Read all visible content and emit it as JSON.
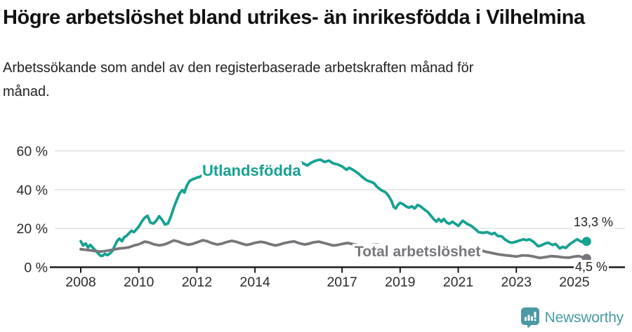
{
  "header": {
    "title": "Högre arbetslöshet bland utrikes- än inrikesfödda i Vilhelmina",
    "subtitle": "Arbetssökande som andel av den registerbaserade arbetskraften månad för månad."
  },
  "footer": {
    "brand": "Newsworthy",
    "logo_icon": "bar-chart-speech-bubble-icon",
    "brand_color": "#4a99a4"
  },
  "colors": {
    "foreign_born_line": "#17a191",
    "total_line": "#77777b",
    "gridline": "#e2e2e2",
    "axis": "#1a1a1a",
    "tick_text": "#2b2b2b"
  },
  "chart_data": {
    "type": "line",
    "title": "Högre arbetslöshet bland utrikes- än inrikesfödda i Vilhelmina",
    "subtitle": "Arbetssökande som andel av den registerbaserade arbetskraften månad för månad.",
    "xlabel": "",
    "ylabel": "",
    "unit": "%",
    "xlim": [
      2007.35,
      2025.8
    ],
    "ylim": [
      0,
      66
    ],
    "grid": "horizontal",
    "legend_position": "inline-labels",
    "x_ticks": [
      2008,
      2010,
      2012,
      2014,
      2017,
      2019,
      2021,
      2023,
      2025
    ],
    "x_tick_labels": [
      "2008",
      "2010",
      "2012",
      "2014",
      "2017",
      "2019",
      "2021",
      "2023",
      "2025"
    ],
    "y_ticks": [
      0,
      20,
      40,
      60
    ],
    "y_tick_labels": [
      "0 %",
      "20 %",
      "40 %",
      "60 %"
    ],
    "series": [
      {
        "name": "Utlandsfödda",
        "color": "#17a191",
        "end_label": "13,3 %",
        "end_value": 13.3,
        "points": [
          [
            2008.0,
            13.4
          ],
          [
            2008.08,
            11.2
          ],
          [
            2008.17,
            12.3
          ],
          [
            2008.25,
            10.2
          ],
          [
            2008.33,
            11.5
          ],
          [
            2008.42,
            10.0
          ],
          [
            2008.5,
            8.7
          ],
          [
            2008.58,
            7.5
          ],
          [
            2008.67,
            6.0
          ],
          [
            2008.75,
            5.8
          ],
          [
            2008.83,
            6.9
          ],
          [
            2008.92,
            6.2
          ],
          [
            2009.0,
            7.0
          ],
          [
            2009.08,
            8.2
          ],
          [
            2009.17,
            11.0
          ],
          [
            2009.25,
            13.4
          ],
          [
            2009.33,
            14.8
          ],
          [
            2009.42,
            13.4
          ],
          [
            2009.5,
            15.5
          ],
          [
            2009.58,
            16.2
          ],
          [
            2009.67,
            17.7
          ],
          [
            2009.75,
            18.8
          ],
          [
            2009.83,
            18.1
          ],
          [
            2009.92,
            19.5
          ],
          [
            2010.0,
            21.0
          ],
          [
            2010.1,
            23.5
          ],
          [
            2010.2,
            25.5
          ],
          [
            2010.3,
            26.5
          ],
          [
            2010.4,
            23.0
          ],
          [
            2010.5,
            22.5
          ],
          [
            2010.6,
            24.0
          ],
          [
            2010.7,
            26.3
          ],
          [
            2010.8,
            24.5
          ],
          [
            2010.9,
            22.0
          ],
          [
            2011.0,
            22.5
          ],
          [
            2011.1,
            26.0
          ],
          [
            2011.2,
            30.5
          ],
          [
            2011.3,
            34.5
          ],
          [
            2011.4,
            38.0
          ],
          [
            2011.5,
            39.8
          ],
          [
            2011.57,
            38.5
          ],
          [
            2011.65,
            42.0
          ],
          [
            2011.75,
            44.5
          ],
          [
            2011.85,
            45.3
          ],
          [
            2012.0,
            46.2
          ],
          [
            2012.1,
            46.6
          ],
          [
            2012.2,
            47.7
          ],
          [
            2012.35,
            49.5
          ],
          [
            2012.5,
            51.0
          ],
          [
            2012.58,
            50.0
          ],
          [
            2012.67,
            50.8
          ],
          [
            2012.75,
            48.5
          ],
          [
            2012.85,
            46.5
          ],
          [
            2012.95,
            47.0
          ],
          [
            2013.1,
            48.5
          ],
          [
            2013.25,
            49.3
          ],
          [
            2013.4,
            48.0
          ],
          [
            2013.55,
            49.5
          ],
          [
            2013.7,
            48.0
          ],
          [
            2013.85,
            48.5
          ],
          [
            2014.0,
            49.5
          ],
          [
            2014.2,
            50.5
          ],
          [
            2014.4,
            49.8
          ],
          [
            2014.6,
            51.5
          ],
          [
            2014.8,
            50.5
          ],
          [
            2015.0,
            52.0
          ],
          [
            2015.2,
            53.0
          ],
          [
            2015.4,
            52.5
          ],
          [
            2015.6,
            54.0
          ],
          [
            2015.8,
            52.5
          ],
          [
            2015.95,
            54.0
          ],
          [
            2016.1,
            55.0
          ],
          [
            2016.25,
            55.5
          ],
          [
            2016.4,
            54.3
          ],
          [
            2016.55,
            55.0
          ],
          [
            2016.7,
            53.5
          ],
          [
            2016.85,
            53.0
          ],
          [
            2017.0,
            52.0
          ],
          [
            2017.15,
            50.3
          ],
          [
            2017.25,
            51.3
          ],
          [
            2017.4,
            50.0
          ],
          [
            2017.55,
            48.5
          ],
          [
            2017.7,
            46.5
          ],
          [
            2017.85,
            44.8
          ],
          [
            2018.0,
            44.0
          ],
          [
            2018.1,
            43.3
          ],
          [
            2018.2,
            41.5
          ],
          [
            2018.35,
            39.7
          ],
          [
            2018.5,
            38.6
          ],
          [
            2018.6,
            36.8
          ],
          [
            2018.7,
            34.3
          ],
          [
            2018.78,
            31.0
          ],
          [
            2018.85,
            30.3
          ],
          [
            2018.92,
            32.1
          ],
          [
            2019.0,
            33.2
          ],
          [
            2019.1,
            32.5
          ],
          [
            2019.2,
            31.4
          ],
          [
            2019.3,
            30.7
          ],
          [
            2019.4,
            31.4
          ],
          [
            2019.5,
            30.3
          ],
          [
            2019.6,
            32.1
          ],
          [
            2019.7,
            31.4
          ],
          [
            2019.85,
            29.6
          ],
          [
            2019.95,
            28.5
          ],
          [
            2020.05,
            26.7
          ],
          [
            2020.15,
            24.9
          ],
          [
            2020.25,
            23.5
          ],
          [
            2020.33,
            24.9
          ],
          [
            2020.42,
            23.5
          ],
          [
            2020.5,
            24.9
          ],
          [
            2020.6,
            23.1
          ],
          [
            2020.7,
            22.4
          ],
          [
            2020.8,
            23.5
          ],
          [
            2020.9,
            22.4
          ],
          [
            2021.0,
            21.3
          ],
          [
            2021.15,
            24.0
          ],
          [
            2021.3,
            22.4
          ],
          [
            2021.45,
            21.3
          ],
          [
            2021.6,
            19.5
          ],
          [
            2021.7,
            18.1
          ],
          [
            2021.85,
            17.7
          ],
          [
            2022.0,
            18.1
          ],
          [
            2022.15,
            17.0
          ],
          [
            2022.25,
            17.7
          ],
          [
            2022.35,
            16.2
          ],
          [
            2022.5,
            15.9
          ],
          [
            2022.6,
            14.4
          ],
          [
            2022.75,
            13.0
          ],
          [
            2022.85,
            12.6
          ],
          [
            2022.95,
            13.0
          ],
          [
            2023.1,
            13.7
          ],
          [
            2023.25,
            14.4
          ],
          [
            2023.35,
            13.9
          ],
          [
            2023.45,
            14.4
          ],
          [
            2023.6,
            13.0
          ],
          [
            2023.75,
            10.8
          ],
          [
            2023.85,
            11.2
          ],
          [
            2024.0,
            12.3
          ],
          [
            2024.1,
            12.6
          ],
          [
            2024.25,
            11.5
          ],
          [
            2024.35,
            12.0
          ],
          [
            2024.5,
            9.7
          ],
          [
            2024.6,
            10.5
          ],
          [
            2024.7,
            9.9
          ],
          [
            2024.85,
            12.0
          ],
          [
            2025.0,
            13.5
          ],
          [
            2025.1,
            14.4
          ],
          [
            2025.2,
            13.5
          ],
          [
            2025.3,
            12.8
          ],
          [
            2025.42,
            13.3
          ]
        ]
      },
      {
        "name": "Total arbetslöshet",
        "color": "#77777b",
        "end_label": "4,5 %",
        "end_value": 4.5,
        "points": [
          [
            2008.0,
            9.3
          ],
          [
            2008.17,
            9.0
          ],
          [
            2008.33,
            8.7
          ],
          [
            2008.5,
            8.3
          ],
          [
            2008.67,
            8.1
          ],
          [
            2008.83,
            8.3
          ],
          [
            2009.0,
            8.7
          ],
          [
            2009.17,
            9.2
          ],
          [
            2009.33,
            9.7
          ],
          [
            2009.5,
            9.9
          ],
          [
            2009.67,
            10.3
          ],
          [
            2009.83,
            11.2
          ],
          [
            2010.0,
            11.8
          ],
          [
            2010.2,
            13.2
          ],
          [
            2010.35,
            12.8
          ],
          [
            2010.5,
            11.9
          ],
          [
            2010.7,
            11.3
          ],
          [
            2010.85,
            11.6
          ],
          [
            2011.0,
            12.4
          ],
          [
            2011.2,
            13.8
          ],
          [
            2011.35,
            13.3
          ],
          [
            2011.5,
            12.4
          ],
          [
            2011.7,
            11.6
          ],
          [
            2011.85,
            12.0
          ],
          [
            2012.0,
            12.8
          ],
          [
            2012.2,
            13.9
          ],
          [
            2012.35,
            13.4
          ],
          [
            2012.5,
            12.5
          ],
          [
            2012.7,
            11.7
          ],
          [
            2012.85,
            12.1
          ],
          [
            2013.0,
            12.9
          ],
          [
            2013.2,
            13.6
          ],
          [
            2013.35,
            13.1
          ],
          [
            2013.5,
            12.4
          ],
          [
            2013.7,
            11.5
          ],
          [
            2013.85,
            11.9
          ],
          [
            2014.0,
            12.6
          ],
          [
            2014.2,
            13.1
          ],
          [
            2014.35,
            12.7
          ],
          [
            2014.5,
            12.0
          ],
          [
            2014.7,
            11.2
          ],
          [
            2014.85,
            11.7
          ],
          [
            2015.0,
            12.4
          ],
          [
            2015.2,
            13.0
          ],
          [
            2015.35,
            13.3
          ],
          [
            2015.5,
            12.5
          ],
          [
            2015.7,
            11.7
          ],
          [
            2015.85,
            12.1
          ],
          [
            2016.0,
            12.8
          ],
          [
            2016.2,
            13.2
          ],
          [
            2016.35,
            12.6
          ],
          [
            2016.5,
            12.0
          ],
          [
            2016.7,
            11.2
          ],
          [
            2016.85,
            11.5
          ],
          [
            2017.0,
            12.0
          ],
          [
            2017.2,
            12.5
          ],
          [
            2017.35,
            12.0
          ],
          [
            2017.5,
            11.6
          ],
          [
            2017.7,
            10.6
          ],
          [
            2017.85,
            11.0
          ],
          [
            2018.0,
            11.4
          ],
          [
            2018.2,
            11.7
          ],
          [
            2018.4,
            11.0
          ],
          [
            2018.6,
            10.3
          ],
          [
            2018.8,
            10.5
          ],
          [
            2019.0,
            10.9
          ],
          [
            2019.2,
            11.1
          ],
          [
            2019.4,
            10.5
          ],
          [
            2019.6,
            10.0
          ],
          [
            2019.8,
            10.2
          ],
          [
            2020.0,
            10.6
          ],
          [
            2020.2,
            11.2
          ],
          [
            2020.4,
            10.9
          ],
          [
            2020.6,
            10.4
          ],
          [
            2020.8,
            10.2
          ],
          [
            2021.0,
            10.4
          ],
          [
            2021.2,
            10.1
          ],
          [
            2021.4,
            9.6
          ],
          [
            2021.6,
            9.0
          ],
          [
            2021.8,
            8.6
          ],
          [
            2022.0,
            7.8
          ],
          [
            2022.2,
            7.2
          ],
          [
            2022.4,
            6.6
          ],
          [
            2022.6,
            6.2
          ],
          [
            2022.8,
            5.9
          ],
          [
            2023.0,
            5.5
          ],
          [
            2023.2,
            6.1
          ],
          [
            2023.4,
            6.0
          ],
          [
            2023.6,
            5.5
          ],
          [
            2023.8,
            4.8
          ],
          [
            2024.0,
            5.2
          ],
          [
            2024.2,
            5.7
          ],
          [
            2024.4,
            5.5
          ],
          [
            2024.6,
            5.1
          ],
          [
            2024.8,
            4.9
          ],
          [
            2025.0,
            5.5
          ],
          [
            2025.15,
            5.7
          ],
          [
            2025.3,
            5.1
          ],
          [
            2025.42,
            4.5
          ]
        ]
      }
    ]
  }
}
